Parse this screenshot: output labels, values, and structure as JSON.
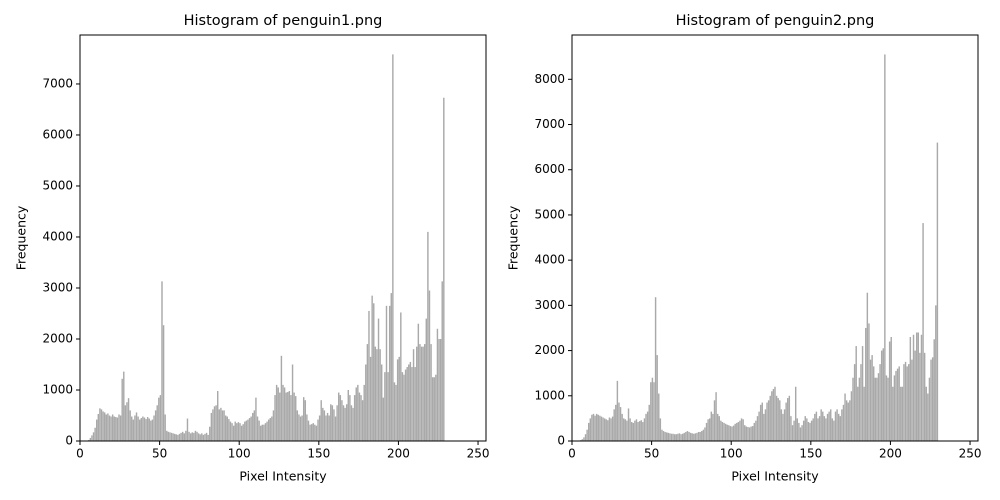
{
  "chart_data": [
    {
      "type": "histogram",
      "title": "Histogram of penguin1.png",
      "x_label": "Pixel Intensity",
      "y_label": "Frequency",
      "color": "#a9a9a9",
      "bins": [
        0,
        1,
        2,
        3,
        4,
        5,
        6,
        7,
        8,
        9,
        10,
        11,
        12,
        13,
        14,
        15,
        16,
        17,
        18,
        19,
        20,
        21,
        22,
        23,
        24,
        25,
        26,
        27,
        28,
        29,
        30,
        31,
        32,
        33,
        34,
        35,
        36,
        37,
        38,
        39,
        40,
        41,
        42,
        43,
        44,
        45,
        46,
        47,
        48,
        49,
        50,
        51,
        52,
        53,
        54,
        55,
        56,
        57,
        58,
        59,
        60,
        61,
        62,
        63,
        64,
        65,
        66,
        67,
        68,
        69,
        70,
        71,
        72,
        73,
        74,
        75,
        76,
        77,
        78,
        79,
        80,
        81,
        82,
        83,
        84,
        85,
        86,
        87,
        88,
        89,
        90,
        91,
        92,
        93,
        94,
        95,
        96,
        97,
        98,
        99,
        100,
        101,
        102,
        103,
        104,
        105,
        106,
        107,
        108,
        109,
        110,
        111,
        112,
        113,
        114,
        115,
        116,
        117,
        118,
        119,
        120,
        121,
        122,
        123,
        124,
        125,
        126,
        127,
        128,
        129,
        130,
        131,
        132,
        133,
        134,
        135,
        136,
        137,
        138,
        139,
        140,
        141,
        142,
        143,
        144,
        145,
        146,
        147,
        148,
        149,
        150,
        151,
        152,
        153,
        154,
        155,
        156,
        157,
        158,
        159,
        160,
        161,
        162,
        163,
        164,
        165,
        166,
        167,
        168,
        169,
        170,
        171,
        172,
        173,
        174,
        175,
        176,
        177,
        178,
        179,
        180,
        181,
        182,
        183,
        184,
        185,
        186,
        187,
        188,
        189,
        190,
        191,
        192,
        193,
        194,
        195,
        196,
        197,
        198,
        199,
        200,
        201,
        202,
        203,
        204,
        205,
        206,
        207,
        208,
        209,
        210,
        211,
        212,
        213,
        214,
        215,
        216,
        217,
        218,
        219,
        220,
        221,
        222,
        223,
        224,
        225,
        226,
        227,
        228,
        229,
        230,
        231,
        232,
        233,
        234,
        235,
        236,
        237,
        238,
        239,
        240,
        241,
        242,
        243,
        244,
        245,
        246,
        247,
        248,
        249,
        250,
        251,
        252,
        253,
        254,
        255,
        256
      ],
      "counts": [
        0,
        0,
        0,
        0,
        0,
        20,
        60,
        110,
        170,
        260,
        420,
        530,
        640,
        620,
        580,
        560,
        520,
        540,
        500,
        480,
        520,
        480,
        470,
        460,
        520,
        500,
        1220,
        1360,
        700,
        760,
        840,
        600,
        480,
        420,
        500,
        560,
        480,
        420,
        450,
        480,
        460,
        430,
        470,
        440,
        400,
        420,
        500,
        600,
        700,
        850,
        900,
        3130,
        2270,
        520,
        200,
        180,
        170,
        160,
        150,
        140,
        130,
        120,
        140,
        160,
        180,
        150,
        200,
        440,
        180,
        150,
        170,
        160,
        200,
        180,
        150,
        130,
        150,
        120,
        140,
        160,
        120,
        280,
        550,
        620,
        680,
        700,
        980,
        620,
        650,
        600,
        600,
        500,
        480,
        430,
        380,
        350,
        300,
        380,
        350,
        370,
        350,
        300,
        330,
        380,
        400,
        420,
        450,
        480,
        550,
        600,
        850,
        480,
        400,
        300,
        320,
        320,
        350,
        380,
        420,
        450,
        480,
        600,
        900,
        1100,
        1050,
        950,
        1670,
        1100,
        1050,
        950,
        960,
        980,
        900,
        1500,
        950,
        880,
        600,
        520,
        480,
        500,
        860,
        800,
        520,
        400,
        320,
        330,
        350,
        320,
        300,
        420,
        500,
        800,
        650,
        600,
        500,
        550,
        500,
        720,
        700,
        620,
        480,
        700,
        950,
        900,
        800,
        700,
        650,
        720,
        1000,
        900,
        700,
        650,
        900,
        1050,
        1100,
        950,
        900,
        800,
        1100,
        1500,
        1900,
        2550,
        1650,
        2850,
        2700,
        1850,
        1800,
        2400,
        1800,
        1500,
        850,
        1350,
        2650,
        1350,
        2650,
        2900,
        7580,
        1150,
        1100,
        1600,
        1650,
        2520,
        1350,
        1300,
        1400,
        1450,
        1500,
        1550,
        1450,
        1800,
        1450,
        1850,
        2300,
        1900,
        1850,
        1850,
        1900,
        2400,
        4100,
        2950,
        1900,
        1250,
        1250,
        1300,
        2200,
        2000,
        2000,
        3130,
        6730,
        0,
        0,
        0,
        0,
        0,
        0,
        0,
        0,
        0,
        0,
        0,
        0,
        0,
        0,
        0,
        0,
        0,
        0,
        0,
        0,
        0,
        0,
        0,
        0,
        0,
        0,
        0
      ],
      "xlim": [
        0,
        255
      ],
      "xticks": [
        0,
        50,
        100,
        150,
        200,
        250
      ],
      "ylim": [
        0,
        7960
      ],
      "yticks": [
        0,
        1000,
        2000,
        3000,
        4000,
        5000,
        6000,
        7000
      ]
    },
    {
      "type": "histogram",
      "title": "Histogram of penguin2.png",
      "x_label": "Pixel Intensity",
      "y_label": "Frequency",
      "color": "#a9a9a9",
      "bins": [
        0,
        1,
        2,
        3,
        4,
        5,
        6,
        7,
        8,
        9,
        10,
        11,
        12,
        13,
        14,
        15,
        16,
        17,
        18,
        19,
        20,
        21,
        22,
        23,
        24,
        25,
        26,
        27,
        28,
        29,
        30,
        31,
        32,
        33,
        34,
        35,
        36,
        37,
        38,
        39,
        40,
        41,
        42,
        43,
        44,
        45,
        46,
        47,
        48,
        49,
        50,
        51,
        52,
        53,
        54,
        55,
        56,
        57,
        58,
        59,
        60,
        61,
        62,
        63,
        64,
        65,
        66,
        67,
        68,
        69,
        70,
        71,
        72,
        73,
        74,
        75,
        76,
        77,
        78,
        79,
        80,
        81,
        82,
        83,
        84,
        85,
        86,
        87,
        88,
        89,
        90,
        91,
        92,
        93,
        94,
        95,
        96,
        97,
        98,
        99,
        100,
        101,
        102,
        103,
        104,
        105,
        106,
        107,
        108,
        109,
        110,
        111,
        112,
        113,
        114,
        115,
        116,
        117,
        118,
        119,
        120,
        121,
        122,
        123,
        124,
        125,
        126,
        127,
        128,
        129,
        130,
        131,
        132,
        133,
        134,
        135,
        136,
        137,
        138,
        139,
        140,
        141,
        142,
        143,
        144,
        145,
        146,
        147,
        148,
        149,
        150,
        151,
        152,
        153,
        154,
        155,
        156,
        157,
        158,
        159,
        160,
        161,
        162,
        163,
        164,
        165,
        166,
        167,
        168,
        169,
        170,
        171,
        172,
        173,
        174,
        175,
        176,
        177,
        178,
        179,
        180,
        181,
        182,
        183,
        184,
        185,
        186,
        187,
        188,
        189,
        190,
        191,
        192,
        193,
        194,
        195,
        196,
        197,
        198,
        199,
        200,
        201,
        202,
        203,
        204,
        205,
        206,
        207,
        208,
        209,
        210,
        211,
        212,
        213,
        214,
        215,
        216,
        217,
        218,
        219,
        220,
        221,
        222,
        223,
        224,
        225,
        226,
        227,
        228,
        229,
        230,
        231,
        232,
        233,
        234,
        235,
        236,
        237,
        238,
        239,
        240,
        241,
        242,
        243,
        244,
        245,
        246,
        247,
        248,
        249,
        250,
        251,
        252,
        253,
        254,
        255,
        256
      ],
      "counts": [
        0,
        0,
        0,
        0,
        0,
        20,
        40,
        80,
        150,
        250,
        400,
        500,
        580,
        600,
        560,
        600,
        580,
        560,
        540,
        520,
        500,
        480,
        460,
        520,
        500,
        540,
        700,
        800,
        1330,
        850,
        750,
        600,
        500,
        480,
        450,
        720,
        500,
        420,
        400,
        450,
        480,
        420,
        440,
        460,
        420,
        500,
        600,
        650,
        800,
        1300,
        1400,
        1300,
        3180,
        1900,
        1050,
        500,
        250,
        220,
        200,
        190,
        180,
        170,
        160,
        160,
        150,
        150,
        160,
        170,
        150,
        160,
        180,
        200,
        220,
        200,
        180,
        170,
        160,
        170,
        180,
        200,
        200,
        220,
        250,
        300,
        400,
        480,
        500,
        650,
        600,
        900,
        1080,
        600,
        550,
        450,
        420,
        400,
        380,
        360,
        350,
        330,
        320,
        340,
        380,
        400,
        420,
        450,
        500,
        480,
        350,
        320,
        310,
        300,
        320,
        330,
        400,
        450,
        550,
        650,
        800,
        850,
        600,
        700,
        850,
        900,
        1000,
        1100,
        1150,
        1200,
        1000,
        950,
        900,
        700,
        600,
        700,
        850,
        950,
        1000,
        550,
        350,
        450,
        1200,
        500,
        400,
        300,
        350,
        450,
        550,
        500,
        420,
        400,
        450,
        500,
        600,
        650,
        500,
        550,
        700,
        650,
        550,
        500,
        600,
        650,
        700,
        500,
        450,
        650,
        700,
        600,
        550,
        700,
        800,
        1050,
        900,
        850,
        900,
        1100,
        1400,
        1700,
        2100,
        1200,
        1400,
        1700,
        2100,
        1200,
        2500,
        3280,
        2600,
        1800,
        1900,
        1650,
        1400,
        1400,
        1500,
        1700,
        2000,
        2050,
        8550,
        1450,
        1400,
        2200,
        2300,
        1200,
        1450,
        1550,
        1600,
        1650,
        1200,
        1200,
        1700,
        1750,
        1650,
        1700,
        2300,
        1800,
        2350,
        2000,
        2400,
        2400,
        1950,
        2350,
        4820,
        1950,
        1200,
        1050,
        1400,
        1800,
        1850,
        2250,
        3000,
        6600,
        0,
        0,
        0,
        0,
        0,
        0,
        0,
        0,
        0,
        0,
        0,
        0,
        0,
        0,
        0,
        0,
        0,
        0,
        0,
        0,
        0,
        0,
        0,
        0,
        0,
        0
      ],
      "xlim": [
        0,
        255
      ],
      "xticks": [
        0,
        50,
        100,
        150,
        200,
        250
      ],
      "ylim": [
        0,
        8980
      ],
      "yticks": [
        0,
        1000,
        2000,
        3000,
        4000,
        5000,
        6000,
        7000,
        8000
      ]
    }
  ]
}
